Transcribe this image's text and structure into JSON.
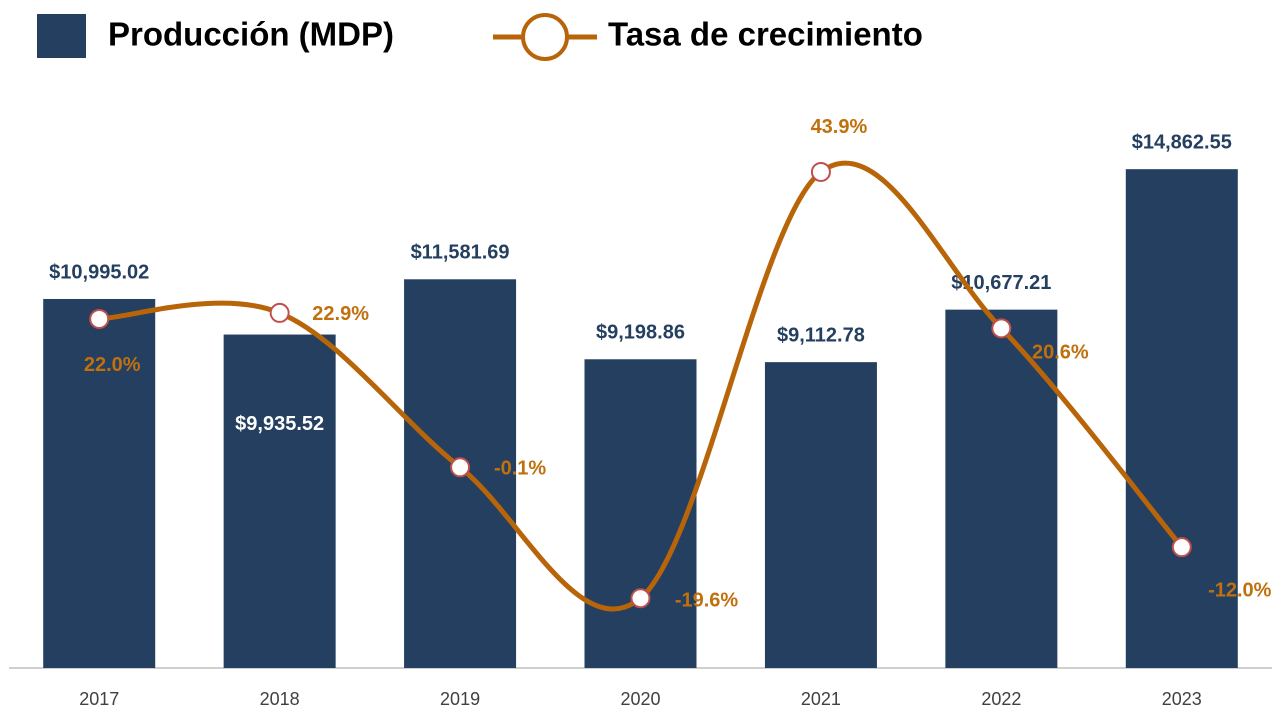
{
  "chart_data": {
    "type": "bar-line",
    "categories": [
      "2017",
      "2018",
      "2019",
      "2020",
      "2021",
      "2022",
      "2023"
    ],
    "series": [
      {
        "name": "Producción (MDP)",
        "type": "bar",
        "color": "#243f60",
        "values": [
          10995.02,
          9935.52,
          11581.69,
          9198.86,
          9112.78,
          10677.21,
          14862.55
        ],
        "value_labels": [
          "$10,995.02",
          "$9,935.52",
          "$11,581.69",
          "$9,198.86",
          "$9,112.78",
          "$10,677.21",
          "$14,862.55"
        ]
      },
      {
        "name": "Tasa de crecimiento",
        "type": "line",
        "axis": "y2",
        "color": "#b8650a",
        "values": [
          22.0,
          22.9,
          -0.1,
          -19.6,
          43.9,
          20.6,
          -12.0
        ],
        "value_labels": [
          "22.0%",
          "22.9%",
          "-0.1%",
          "-19.6%",
          "43.9%",
          "20.6%",
          "-12.0%"
        ]
      }
    ],
    "ylim": [
      0,
      16000
    ],
    "y2lim": [
      -30,
      50
    ],
    "legend": "top-left"
  }
}
